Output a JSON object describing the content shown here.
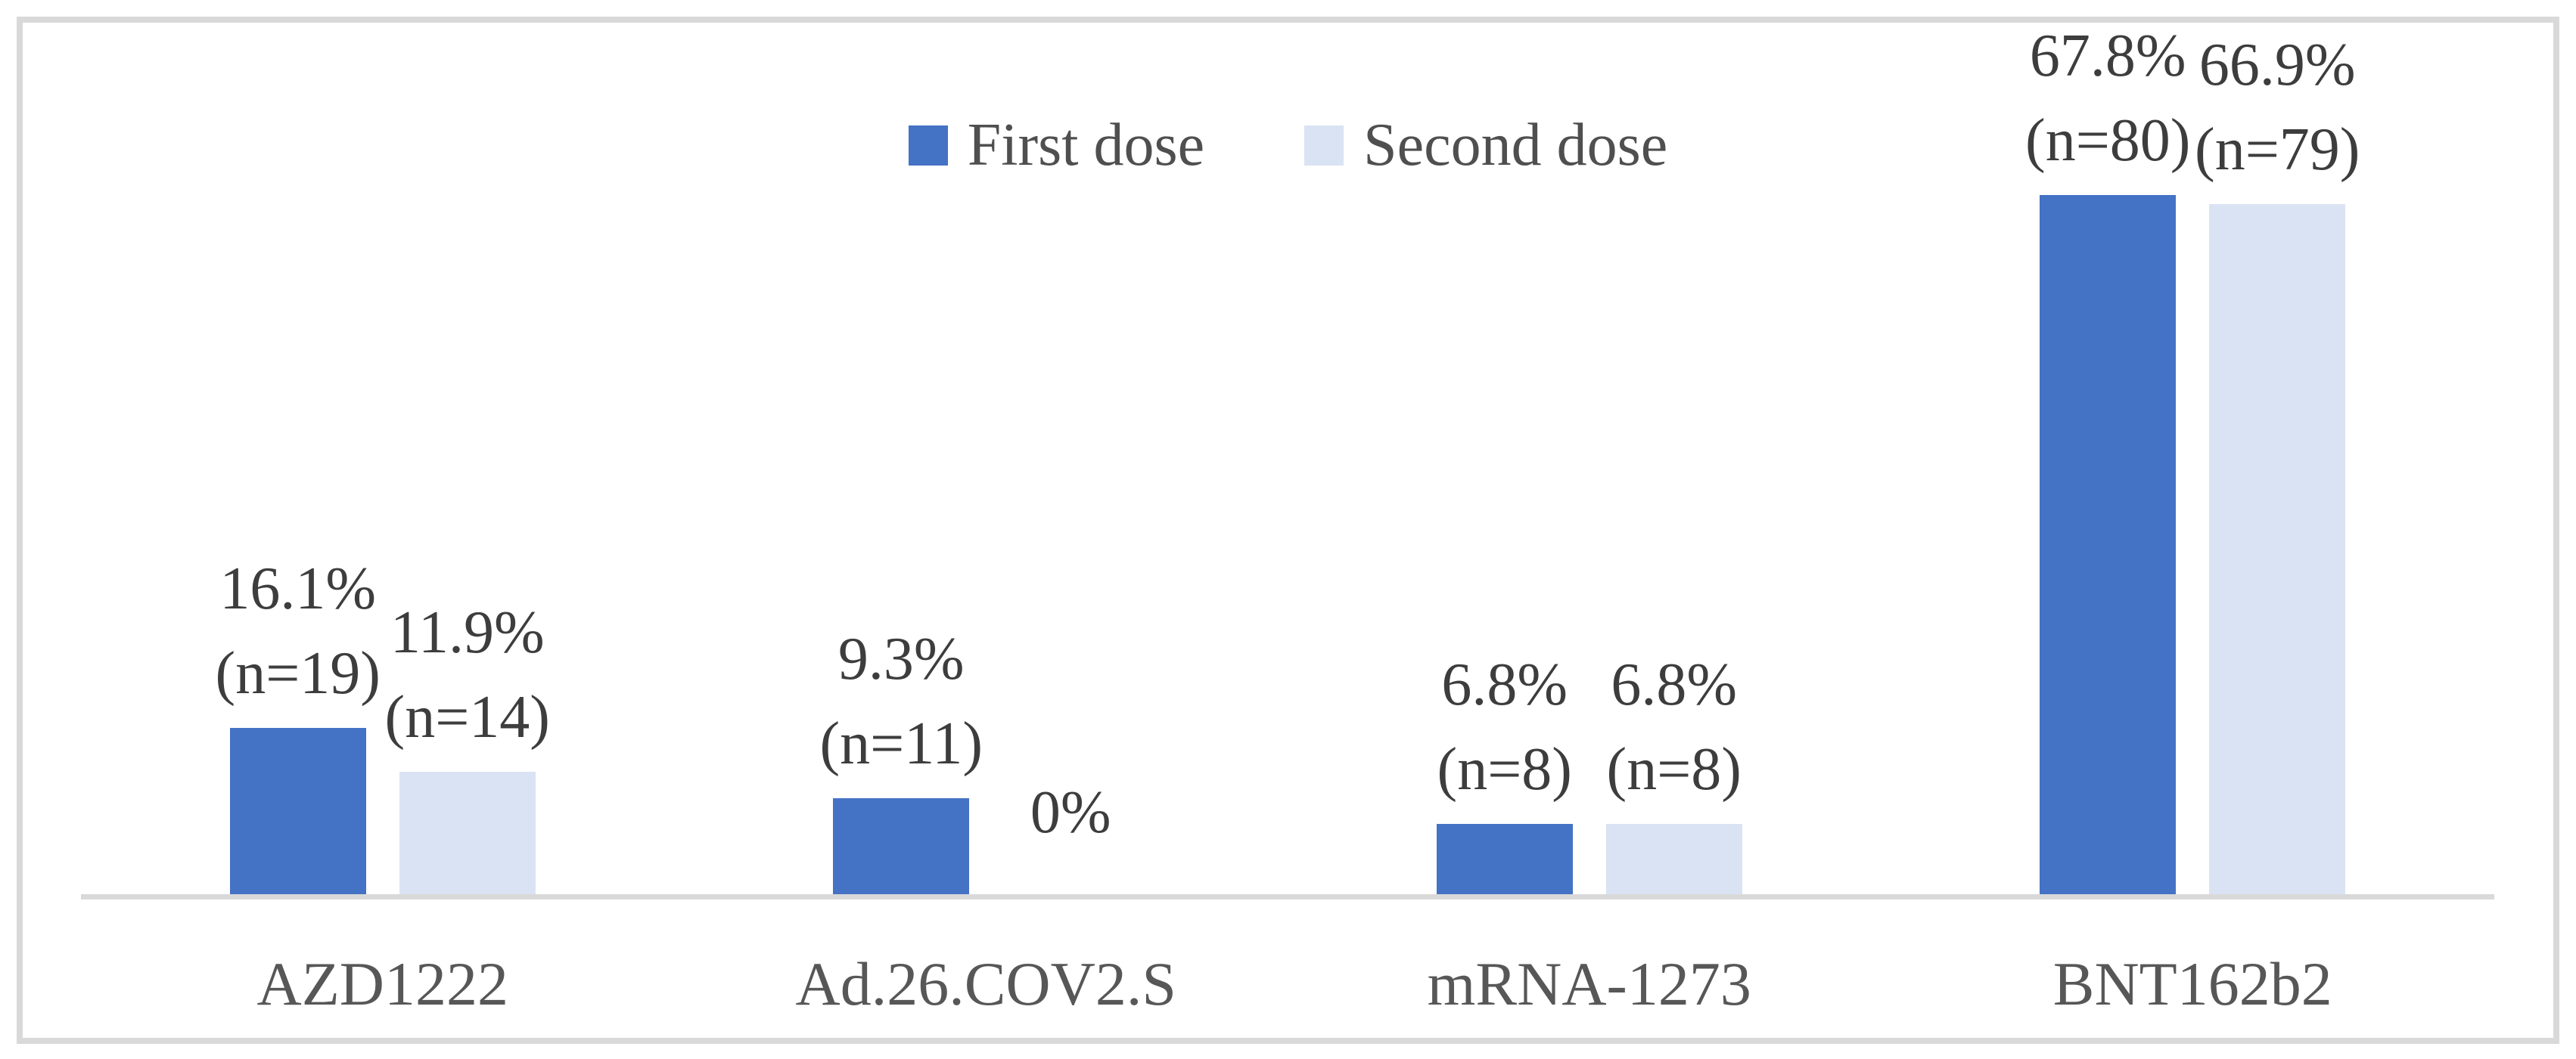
{
  "chart_data": {
    "type": "bar",
    "title": "",
    "xlabel": "",
    "ylabel": "",
    "categories": [
      "AZD1222",
      "Ad.26.COV2.S",
      "mRNA-1273",
      "BNT162b2"
    ],
    "series": [
      {
        "name": "First dose",
        "color": "#4472C4",
        "values": [
          16.1,
          9.3,
          6.8,
          67.8
        ],
        "labels": [
          [
            "16.1%",
            "(n=19)"
          ],
          [
            "9.3%",
            "(n=11)"
          ],
          [
            "6.8%",
            "(n=8)"
          ],
          [
            "67.8%",
            "(n=80)"
          ]
        ]
      },
      {
        "name": "Second dose",
        "color": "#DAE3F3",
        "values": [
          11.9,
          0,
          6.8,
          66.9
        ],
        "labels": [
          [
            "11.9%",
            "(n=14)"
          ],
          [
            "0%"
          ],
          [
            "6.8%",
            "(n=8)"
          ],
          [
            "66.9%",
            "(n=79)"
          ]
        ]
      }
    ],
    "ylim": [
      0,
      70
    ],
    "grid": false,
    "legend_position": "top",
    "axis_color": "#D9D9D9",
    "frame_color": "#D9D9D9"
  }
}
